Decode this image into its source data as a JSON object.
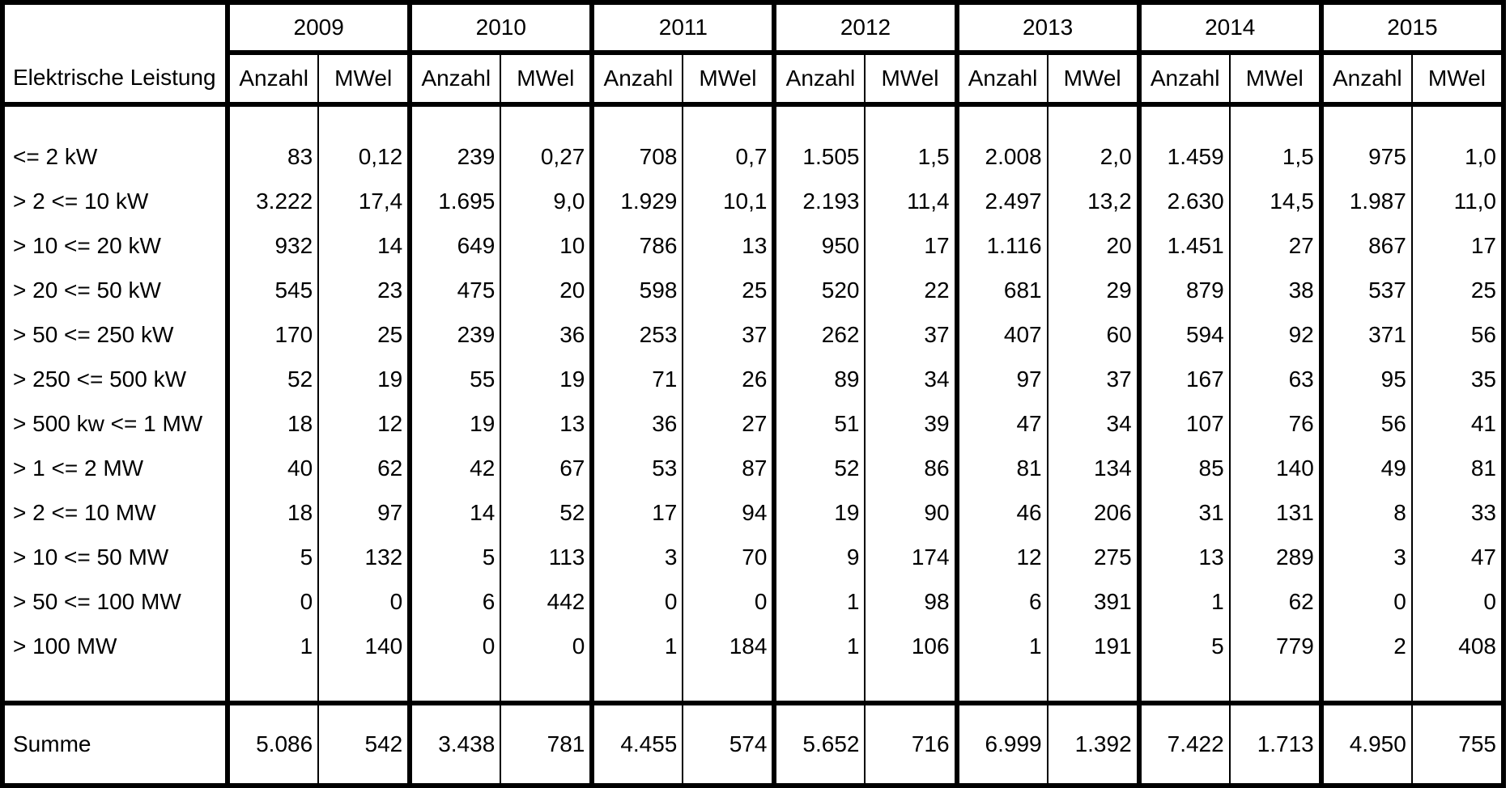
{
  "chart_data": {
    "type": "table",
    "row_header_label": "Elektrische Leistung",
    "years": [
      "2009",
      "2010",
      "2011",
      "2012",
      "2013",
      "2014",
      "2015"
    ],
    "sub_columns": [
      "Anzahl",
      "MWel"
    ],
    "rows": [
      {
        "label": "<= 2 kW",
        "values": [
          "83",
          "0,12",
          "239",
          "0,27",
          "708",
          "0,7",
          "1.505",
          "1,5",
          "2.008",
          "2,0",
          "1.459",
          "1,5",
          "975",
          "1,0"
        ]
      },
      {
        "label": "> 2 <= 10 kW",
        "values": [
          "3.222",
          "17,4",
          "1.695",
          "9,0",
          "1.929",
          "10,1",
          "2.193",
          "11,4",
          "2.497",
          "13,2",
          "2.630",
          "14,5",
          "1.987",
          "11,0"
        ]
      },
      {
        "label": "> 10 <= 20 kW",
        "values": [
          "932",
          "14",
          "649",
          "10",
          "786",
          "13",
          "950",
          "17",
          "1.116",
          "20",
          "1.451",
          "27",
          "867",
          "17"
        ]
      },
      {
        "label": "> 20 <= 50 kW",
        "values": [
          "545",
          "23",
          "475",
          "20",
          "598",
          "25",
          "520",
          "22",
          "681",
          "29",
          "879",
          "38",
          "537",
          "25"
        ]
      },
      {
        "label": "> 50 <= 250 kW",
        "values": [
          "170",
          "25",
          "239",
          "36",
          "253",
          "37",
          "262",
          "37",
          "407",
          "60",
          "594",
          "92",
          "371",
          "56"
        ]
      },
      {
        "label": "> 250  <= 500 kW",
        "values": [
          "52",
          "19",
          "55",
          "19",
          "71",
          "26",
          "89",
          "34",
          "97",
          "37",
          "167",
          "63",
          "95",
          "35"
        ]
      },
      {
        "label": "> 500 kw <= 1 MW",
        "values": [
          "18",
          "12",
          "19",
          "13",
          "36",
          "27",
          "51",
          "39",
          "47",
          "34",
          "107",
          "76",
          "56",
          "41"
        ]
      },
      {
        "label": "> 1  <= 2 MW",
        "values": [
          "40",
          "62",
          "42",
          "67",
          "53",
          "87",
          "52",
          "86",
          "81",
          "134",
          "85",
          "140",
          "49",
          "81"
        ]
      },
      {
        "label": "> 2 <= 10 MW",
        "values": [
          "18",
          "97",
          "14",
          "52",
          "17",
          "94",
          "19",
          "90",
          "46",
          "206",
          "31",
          "131",
          "8",
          "33"
        ]
      },
      {
        "label": "> 10 <= 50 MW",
        "values": [
          "5",
          "132",
          "5",
          "113",
          "3",
          "70",
          "9",
          "174",
          "12",
          "275",
          "13",
          "289",
          "3",
          "47"
        ]
      },
      {
        "label": "> 50 <= 100 MW",
        "values": [
          "0",
          "0",
          "6",
          "442",
          "0",
          "0",
          "1",
          "98",
          "6",
          "391",
          "1",
          "62",
          "0",
          "0"
        ]
      },
      {
        "label": "> 100 MW",
        "values": [
          "1",
          "140",
          "0",
          "0",
          "1",
          "184",
          "1",
          "106",
          "1",
          "191",
          "5",
          "779",
          "2",
          "408"
        ]
      }
    ],
    "total": {
      "label": "Summe",
      "values": [
        "5.086",
        "542",
        "3.438",
        "781",
        "4.455",
        "574",
        "5.652",
        "716",
        "6.999",
        "1.392",
        "7.422",
        "1.713",
        "4.950",
        "755"
      ]
    }
  }
}
